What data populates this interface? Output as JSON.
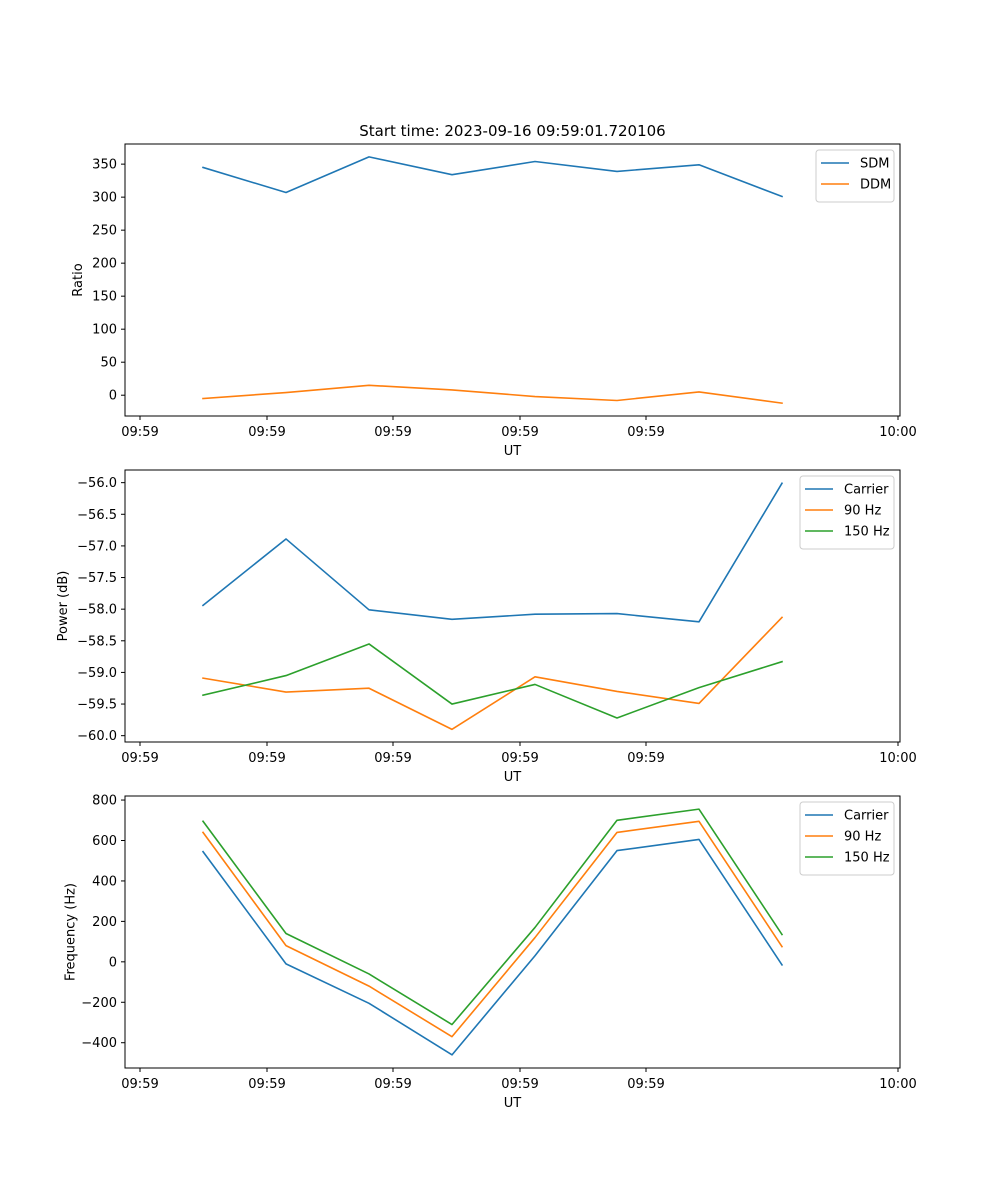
{
  "chart_data": [
    {
      "type": "line",
      "title": "Start time: 2023-09-16 09:59:01.720106",
      "xlabel": "UT",
      "ylabel": "Ratio",
      "x_ticks": [
        "09:59",
        "09:59",
        "09:59",
        "09:59",
        "09:59",
        "10:00"
      ],
      "ylim": [
        -31.5,
        380.5
      ],
      "y_ticks": [
        0,
        50,
        100,
        150,
        200,
        250,
        300,
        350
      ],
      "y_tick_labels": [
        "0",
        "50",
        "100",
        "150",
        "200",
        "250",
        "300",
        "350"
      ],
      "legend_position": "top-right",
      "series": [
        {
          "name": "SDM",
          "color": "#1f77b4",
          "values": [
            345,
            307,
            361,
            334,
            354,
            339,
            349,
            301
          ]
        },
        {
          "name": "DDM",
          "color": "#ff7f0e",
          "values": [
            -5,
            4,
            15,
            8,
            -2,
            -8,
            5,
            -12
          ]
        }
      ]
    },
    {
      "type": "line",
      "title": "",
      "xlabel": "UT",
      "ylabel": "Power (dB)",
      "x_ticks": [
        "09:59",
        "09:59",
        "09:59",
        "09:59",
        "09:59",
        "10:00"
      ],
      "ylim": [
        -60.1,
        -55.8
      ],
      "y_ticks": [
        -60.0,
        -59.5,
        -59.0,
        -58.5,
        -58.0,
        -57.5,
        -57.0,
        -56.5,
        -56.0
      ],
      "y_tick_labels": [
        "−60.0",
        "−59.5",
        "−59.0",
        "−58.5",
        "−58.0",
        "−57.5",
        "−57.0",
        "−56.5",
        "−56.0"
      ],
      "legend_position": "top-right",
      "series": [
        {
          "name": "Carrier",
          "color": "#1f77b4",
          "values": [
            -57.94,
            -56.89,
            -58.01,
            -58.16,
            -58.08,
            -58.07,
            -58.2,
            -56.01
          ]
        },
        {
          "name": "90 Hz",
          "color": "#ff7f0e",
          "values": [
            -59.09,
            -59.31,
            -59.25,
            -59.9,
            -59.07,
            -59.3,
            -59.49,
            -58.13
          ]
        },
        {
          "name": "150 Hz",
          "color": "#2ca02c",
          "values": [
            -59.36,
            -59.05,
            -58.55,
            -59.5,
            -59.19,
            -59.72,
            -59.24,
            -58.83
          ]
        }
      ]
    },
    {
      "type": "line",
      "title": "",
      "xlabel": "UT",
      "ylabel": "Frequency (Hz)",
      "x_ticks": [
        "09:59",
        "09:59",
        "09:59",
        "09:59",
        "09:59",
        "10:00"
      ],
      "ylim": [
        -525,
        820
      ],
      "y_ticks": [
        -400,
        -200,
        0,
        200,
        400,
        600,
        800
      ],
      "y_tick_labels": [
        "−400",
        "−200",
        "0",
        "200",
        "400",
        "600",
        "800"
      ],
      "legend_position": "top-right",
      "series": [
        {
          "name": "Carrier",
          "color": "#1f77b4",
          "values": [
            545,
            -10,
            -205,
            -460,
            30,
            550,
            605,
            -15
          ]
        },
        {
          "name": "90 Hz",
          "color": "#ff7f0e",
          "values": [
            640,
            80,
            -120,
            -370,
            120,
            640,
            695,
            75
          ]
        },
        {
          "name": "150 Hz",
          "color": "#2ca02c",
          "values": [
            695,
            140,
            -60,
            -310,
            170,
            700,
            755,
            135
          ]
        }
      ]
    }
  ]
}
